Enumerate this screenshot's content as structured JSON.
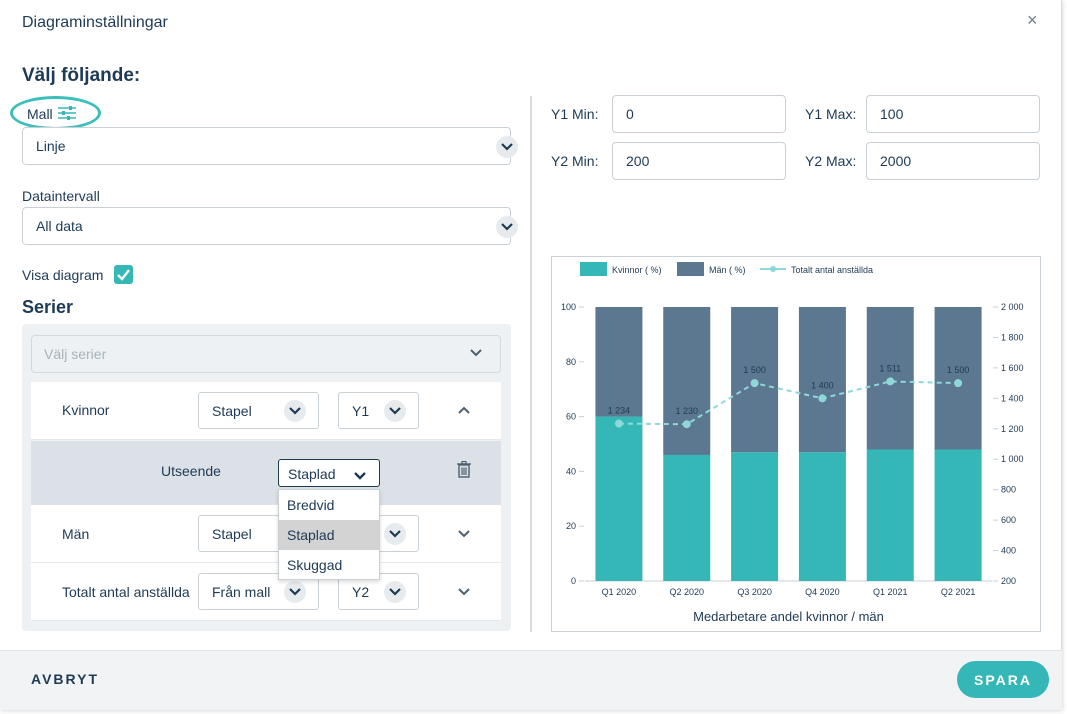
{
  "dialog": {
    "title": "Diagraminställningar",
    "close_icon": "×"
  },
  "left": {
    "heading": "Välj följande:",
    "template_label": "Mall",
    "template_value": "Linje",
    "interval_label": "Dataintervall",
    "interval_value": "All data",
    "show_chart_label": "Visa diagram",
    "show_chart_checked": true,
    "series_heading": "Serier",
    "series_placeholder": "Välj serier"
  },
  "series": [
    {
      "name": "Kvinnor",
      "type": "Stapel",
      "axis": "Y1"
    },
    {
      "name": "Män",
      "type": "Stapel",
      "axis": ""
    },
    {
      "name": "Totalt antal anställda",
      "type": "Från mall",
      "axis": "Y2"
    }
  ],
  "appearance": {
    "label": "Utseende",
    "value": "Staplad",
    "options": [
      "Bredvid",
      "Staplad",
      "Skuggad"
    ],
    "selected_index": 1
  },
  "axes": {
    "y1_min_label": "Y1 Min:",
    "y1_min": "0",
    "y1_max_label": "Y1 Max:",
    "y1_max": "100",
    "y2_min_label": "Y2 Min:",
    "y2_min": "200",
    "y2_max_label": "Y2 Max:",
    "y2_max": "2000"
  },
  "footer": {
    "cancel": "AVBRYT",
    "save": "SPARA"
  },
  "colors": {
    "teal": "#35b7b7",
    "slate": "#5b7890",
    "line": "#8ed8d8"
  },
  "chart_data": {
    "type": "bar",
    "stacked": true,
    "categories": [
      "Q1 2020",
      "Q2 2020",
      "Q3 2020",
      "Q4 2020",
      "Q1 2021",
      "Q2 2021"
    ],
    "series": [
      {
        "name": "Kvinnor ( %)",
        "axis": "y1",
        "values": [
          60,
          46,
          47,
          47,
          48,
          48
        ]
      },
      {
        "name": "Män ( %)",
        "axis": "y1",
        "values": [
          40,
          54,
          53,
          53,
          52,
          52
        ]
      },
      {
        "name": "Totalt antal anställda",
        "type": "line",
        "axis": "y2",
        "values": [
          1234,
          1230,
          1500,
          1400,
          1511,
          1500
        ],
        "labels": [
          "1 234",
          "1 230",
          "1 500",
          "1 400",
          "1 511",
          "1 500"
        ]
      }
    ],
    "y1_ticks": [
      "0",
      "20",
      "40",
      "60",
      "80",
      "100"
    ],
    "y2_ticks": [
      "200",
      "400",
      "600",
      "800",
      "1 000",
      "1 200",
      "1 400",
      "1 600",
      "1 800",
      "2 000"
    ],
    "y1lim": [
      0,
      100
    ],
    "y2lim": [
      200,
      2000
    ],
    "xlabel": "Medarbetare andel kvinnor / män",
    "legend": "top"
  }
}
